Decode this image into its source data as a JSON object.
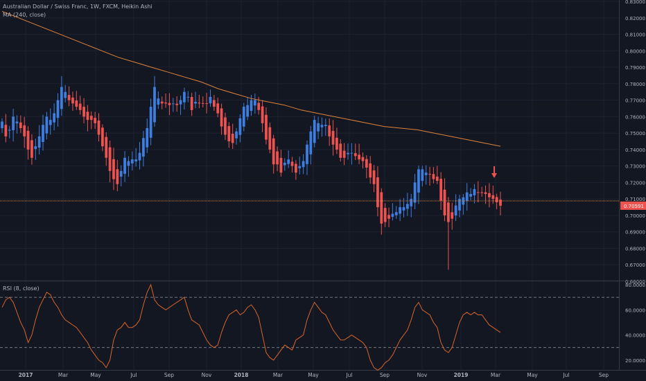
{
  "header": {
    "title": "Australian Dollar / Swiss Franc, 1W, FXCM, Heikin Ashi",
    "ma_label": "MA (240, close)",
    "rsi_label": "RSI (8, close)"
  },
  "colors": {
    "background": "#131722",
    "up": "#3d7ee0",
    "down": "#ef5350",
    "ma": "#e0843a",
    "rsi": "#d9642b",
    "price_line": "#e0843a",
    "grid": "#1e2230",
    "text": "#b2b5be",
    "price_badge": "#ef5350"
  },
  "chart_data": [
    {
      "type": "candlestick",
      "style": "Heikin Ashi",
      "ylim": [
        0.66,
        0.83
      ],
      "y_ticks": [
        "0.66000",
        "0.67000",
        "0.68000",
        "0.69000",
        "0.70000",
        "0.71000",
        "0.72000",
        "0.73000",
        "0.74000",
        "0.75000",
        "0.76000",
        "0.77000",
        "0.78000",
        "0.79000",
        "0.80000",
        "0.81000",
        "0.82000",
        "0.83000"
      ],
      "x_ticks": [
        "2017",
        "Mar",
        "May",
        "Jul",
        "Sep",
        "Nov",
        "2018",
        "Mar",
        "May",
        "Jul",
        "Sep",
        "Nov",
        "2019",
        "Mar",
        "May",
        "Jul",
        "Sep"
      ],
      "last_price": "0.70591",
      "close": [
        0.757,
        0.748,
        0.752,
        0.76,
        0.757,
        0.753,
        0.748,
        0.74,
        0.735,
        0.742,
        0.748,
        0.755,
        0.76,
        0.758,
        0.762,
        0.77,
        0.778,
        0.775,
        0.77,
        0.768,
        0.766,
        0.764,
        0.76,
        0.758,
        0.758,
        0.756,
        0.749,
        0.742,
        0.735,
        0.727,
        0.722,
        0.719,
        0.727,
        0.735,
        0.733,
        0.734,
        0.734,
        0.738,
        0.747,
        0.753,
        0.766,
        0.778,
        0.771,
        0.768,
        0.768,
        0.767,
        0.768,
        0.767,
        0.77,
        0.775,
        0.772,
        0.764,
        0.769,
        0.768,
        0.768,
        0.768,
        0.772,
        0.766,
        0.762,
        0.754,
        0.749,
        0.745,
        0.744,
        0.751,
        0.759,
        0.766,
        0.767,
        0.77,
        0.77,
        0.764,
        0.756,
        0.746,
        0.74,
        0.731,
        0.731,
        0.726,
        0.732,
        0.734,
        0.73,
        0.726,
        0.73,
        0.733,
        0.743,
        0.751,
        0.758,
        0.756,
        0.755,
        0.755,
        0.748,
        0.743,
        0.74,
        0.735,
        0.735,
        0.738,
        0.738,
        0.736,
        0.734,
        0.733,
        0.729,
        0.723,
        0.719,
        0.705,
        0.695,
        0.696,
        0.698,
        0.701,
        0.702,
        0.705,
        0.705,
        0.707,
        0.71,
        0.72,
        0.728,
        0.728,
        0.726,
        0.725,
        0.722,
        0.721,
        0.709,
        0.7,
        0.696,
        0.698,
        0.706,
        0.71,
        0.711,
        0.714,
        0.713,
        0.716,
        0.714,
        0.714,
        0.713,
        0.711,
        0.71,
        0.708,
        0.7059
      ],
      "ma": [
        0.824,
        0.82,
        0.816,
        0.812,
        0.808,
        0.804,
        0.8,
        0.796,
        0.793,
        0.79,
        0.787,
        0.784,
        0.781,
        0.777,
        0.774,
        0.771,
        0.769,
        0.767,
        0.764,
        0.762,
        0.76,
        0.758,
        0.756,
        0.754,
        0.753,
        0.752,
        0.75,
        0.748,
        0.746,
        0.744,
        0.742
      ]
    },
    {
      "type": "line",
      "name": "RSI (8, close)",
      "ylim": [
        10,
        80
      ],
      "y_ticks": [
        "20.0000",
        "40.0000",
        "60.0000",
        "80.0000"
      ],
      "levels": [
        70,
        30
      ],
      "values": [
        62,
        68,
        70,
        66,
        58,
        50,
        44,
        34,
        40,
        52,
        62,
        68,
        74,
        72,
        66,
        62,
        56,
        52,
        50,
        48,
        46,
        42,
        38,
        34,
        28,
        24,
        20,
        18,
        14,
        20,
        36,
        44,
        46,
        50,
        46,
        46,
        48,
        52,
        64,
        74,
        80,
        68,
        64,
        62,
        60,
        62,
        64,
        66,
        68,
        70,
        60,
        52,
        50,
        48,
        42,
        36,
        32,
        30,
        32,
        42,
        50,
        56,
        58,
        60,
        56,
        58,
        62,
        64,
        60,
        54,
        40,
        26,
        22,
        20,
        24,
        28,
        32,
        30,
        28,
        36,
        38,
        40,
        52,
        60,
        66,
        62,
        58,
        56,
        50,
        44,
        40,
        36,
        36,
        38,
        40,
        38,
        36,
        34,
        30,
        20,
        14,
        12,
        14,
        18,
        20,
        24,
        30,
        36,
        40,
        44,
        52,
        62,
        66,
        60,
        58,
        56,
        50,
        46,
        34,
        28,
        26,
        30,
        40,
        50,
        56,
        58,
        56,
        58,
        56,
        56,
        52,
        48,
        46,
        44,
        42
      ]
    }
  ]
}
